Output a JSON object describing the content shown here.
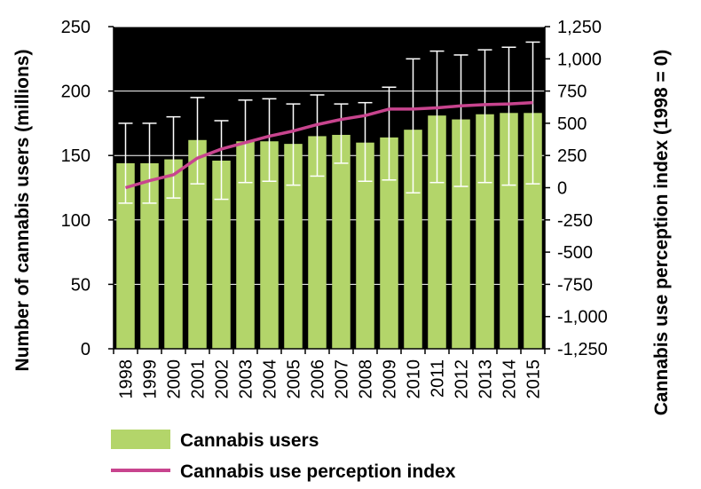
{
  "chart_data": {
    "type": "bar",
    "categories": [
      "1998",
      "1999",
      "2000",
      "2001",
      "2002",
      "2003",
      "2004",
      "2005",
      "2006",
      "2007",
      "2008",
      "2009",
      "2010",
      "2011",
      "2012",
      "2013",
      "2014",
      "2015"
    ],
    "series": [
      {
        "name": "Cannabis users",
        "type": "bar",
        "axis": "left",
        "color": "#b3d56a",
        "values": [
          144,
          144,
          147,
          162,
          146,
          161,
          161,
          159,
          165,
          166,
          160,
          164,
          170,
          181,
          178,
          182,
          183,
          183
        ],
        "error_low": [
          113,
          113,
          117,
          128,
          116,
          129,
          130,
          127,
          134,
          144,
          130,
          131,
          121,
          129,
          126,
          129,
          127,
          128
        ],
        "error_high": [
          175,
          175,
          180,
          195,
          177,
          193,
          194,
          190,
          197,
          190,
          191,
          203,
          225,
          231,
          228,
          232,
          234,
          238
        ]
      },
      {
        "name": "Cannabis use perception index",
        "type": "line",
        "axis": "right",
        "color": "#c8448e",
        "values": [
          0,
          55,
          100,
          230,
          300,
          350,
          400,
          440,
          490,
          530,
          560,
          610,
          610,
          620,
          635,
          645,
          650,
          660
        ]
      }
    ],
    "ylabel": "Number of cannabis users (millions)",
    "ylabel_right": "Cannabis use perception index (1998 = 0)",
    "ylim": [
      0,
      250
    ],
    "ylim_right": [
      -1250,
      1250
    ],
    "yticks": [
      0,
      50,
      100,
      150,
      200,
      250
    ],
    "yticks_right": [
      "1,250",
      "1,000",
      "750",
      "500",
      "250",
      "0",
      "-250",
      "-500",
      "-750",
      "-1,000",
      "-1,250"
    ],
    "plot_background": "#000000",
    "grid": "horizontal",
    "legend_position": "bottom"
  }
}
